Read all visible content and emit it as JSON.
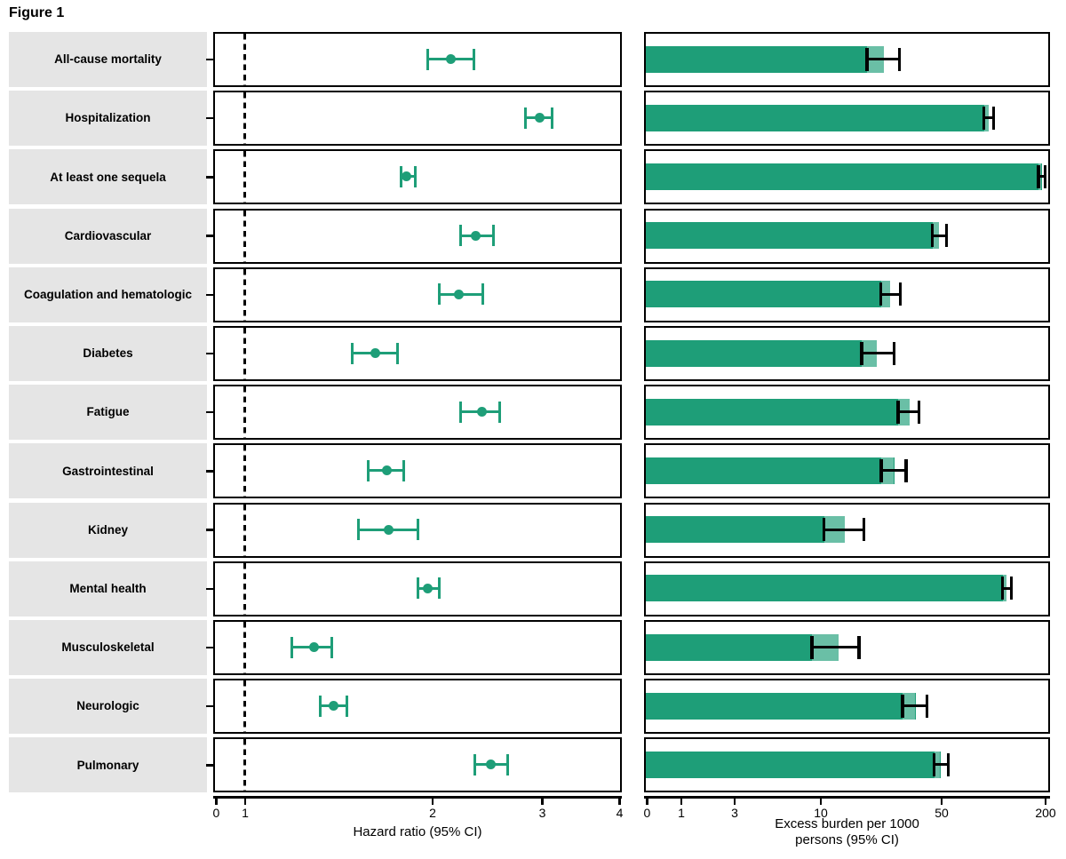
{
  "figure": {
    "title": "Figure 1",
    "colors": {
      "green": "#1E9E78",
      "label_bg": "#E5E5E5",
      "axis_black": "#000000"
    }
  },
  "chart_data": [
    {
      "type": "scatter",
      "subtype": "forest-plot-errorbars",
      "xlabel": "Hazard ratio (95% CI)",
      "xticks": [
        0,
        1,
        2,
        3,
        4
      ],
      "xscale": "log above 1, compressed 0-1 stub",
      "reference_line_x": 1,
      "grid": false,
      "categories": [
        "All-cause mortality",
        "Hospitalization",
        "At least one sequela",
        "Cardiovascular",
        "Coagulation and hematologic",
        "Diabetes",
        "Fatigue",
        "Gastrointestinal",
        "Kidney",
        "Mental health",
        "Musculoskeletal",
        "Neurologic",
        "Pulmonary"
      ],
      "series": [
        {
          "name": "Hazard ratio",
          "values": [
            2.14,
            2.98,
            1.82,
            2.35,
            2.21,
            1.62,
            2.4,
            1.69,
            1.7,
            1.97,
            1.29,
            1.39,
            2.48
          ],
          "ci_low": [
            1.97,
            2.82,
            1.78,
            2.22,
            2.05,
            1.49,
            2.22,
            1.58,
            1.52,
            1.9,
            1.19,
            1.32,
            2.34
          ],
          "ci_high": [
            2.33,
            3.12,
            1.88,
            2.51,
            2.41,
            1.76,
            2.57,
            1.8,
            1.9,
            2.05,
            1.38,
            1.46,
            2.64
          ]
        }
      ]
    },
    {
      "type": "bar",
      "subtype": "horizontal-bars-with-errorbars",
      "xlabel": "Excess burden per 1000 persons (95% CI)",
      "xlabel_line1": "Excess burden per 1000",
      "xlabel_line2": "persons (95% CI)",
      "xticks": [
        0,
        1,
        3,
        10,
        50,
        200
      ],
      "xscale": "log above 1, linear 0-1 stub",
      "grid": false,
      "categories": [
        "All-cause mortality",
        "Hospitalization",
        "At least one sequela",
        "Cardiovascular",
        "Coagulation and hematologic",
        "Diabetes",
        "Fatigue",
        "Gastrointestinal",
        "Kidney",
        "Mental health",
        "Musculoskeletal",
        "Neurologic",
        "Pulmonary"
      ],
      "series": [
        {
          "name": "Excess burden per 1000 persons",
          "values": [
            23.4,
            93.7,
            190.7,
            48.8,
            25.2,
            21.3,
            32.7,
            26.7,
            13.9,
            118.8,
            12.8,
            35.5,
            49.4
          ],
          "ci_low": [
            18.7,
            88.3,
            184.0,
            44.4,
            22.4,
            17.4,
            28.3,
            22.6,
            10.5,
            113.3,
            8.9,
            30.0,
            45.5
          ],
          "ci_high": [
            28.7,
            100.6,
            200.0,
            53.7,
            29.0,
            26.7,
            37.2,
            31.5,
            17.9,
            127.5,
            16.8,
            41.4,
            55.0
          ]
        }
      ]
    }
  ]
}
